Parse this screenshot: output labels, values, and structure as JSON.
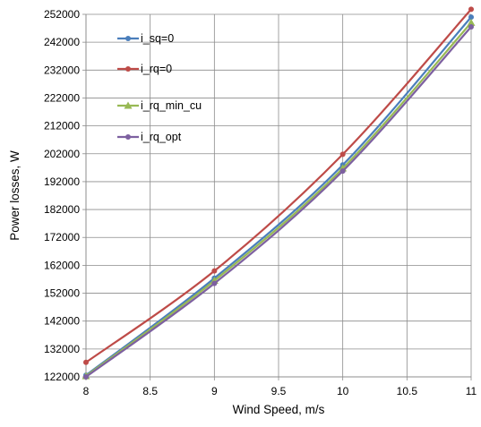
{
  "chart_data": {
    "type": "line",
    "xlabel": "Wind Speed, m/s",
    "ylabel": "Power losses, W",
    "xlim": [
      8,
      11
    ],
    "ylim": [
      122000,
      252000
    ],
    "x_ticks": [
      "8",
      "8.5",
      "9",
      "9.5",
      "10",
      "10.5",
      "11"
    ],
    "y_ticks": [
      "122000",
      "132000",
      "142000",
      "152000",
      "162000",
      "172000",
      "182000",
      "192000",
      "202000",
      "212000",
      "222000",
      "232000",
      "242000",
      "252000"
    ],
    "grid": true,
    "legend_position": "top-left",
    "x": [
      8,
      9,
      10,
      11
    ],
    "series": [
      {
        "name": "i_sq=0",
        "color": "#4a7ebb",
        "marker": "circle",
        "values": [
          122600,
          157400,
          198000,
          251000
        ]
      },
      {
        "name": "i_rq=0",
        "color": "#be4b48",
        "marker": "circle",
        "values": [
          127200,
          160000,
          201800,
          253800
        ]
      },
      {
        "name": "i_rq_min_cu",
        "color": "#98b954",
        "marker": "triangle",
        "values": [
          122300,
          156500,
          196800,
          249000
        ]
      },
      {
        "name": "i_rq_opt",
        "color": "#7d60a0",
        "marker": "circle",
        "values": [
          122000,
          155500,
          195800,
          247500
        ]
      }
    ]
  }
}
